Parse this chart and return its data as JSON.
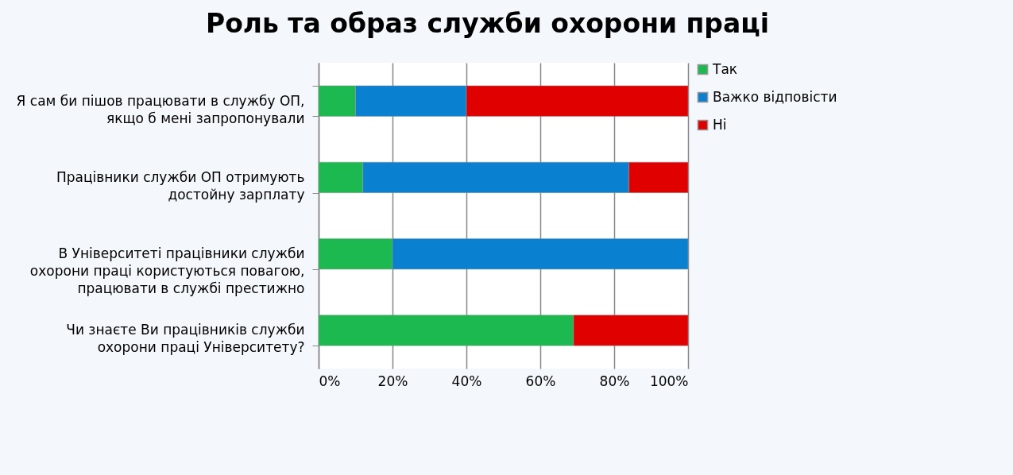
{
  "chart_data": {
    "type": "bar",
    "title": "Роль та образ служби охорони праці",
    "orientation": "horizontal",
    "stacked": true,
    "categories": [
      "Я сам би пішов працювати в службу ОП, якщо б мені запропонували",
      "Працівники служби ОП отримують достойну зарплату",
      "В Університеті працівники служби охорони праці користуються повагою, працювати в службі престижно",
      "Чи знаєте Ви працівників служби охорони праці Університету?"
    ],
    "series": [
      {
        "name": "Так",
        "color": "#1cb850",
        "values": [
          10,
          12,
          20,
          69
        ]
      },
      {
        "name": "Важко відповісти",
        "color": "#0a80d0",
        "values": [
          30,
          72,
          80,
          null
        ]
      },
      {
        "name": "Ні",
        "color": "#e00000",
        "values": [
          60,
          16,
          null,
          31
        ]
      }
    ],
    "xlim": [
      0,
      100
    ],
    "xticks": [
      {
        "value": 0,
        "label": "0%"
      },
      {
        "value": 20,
        "label": "20%"
      },
      {
        "value": 40,
        "label": "40%"
      },
      {
        "value": 60,
        "label": "60%"
      },
      {
        "value": 80,
        "label": "80%"
      },
      {
        "value": 100,
        "label": "100%"
      }
    ],
    "grid": "x",
    "legend": "right"
  }
}
